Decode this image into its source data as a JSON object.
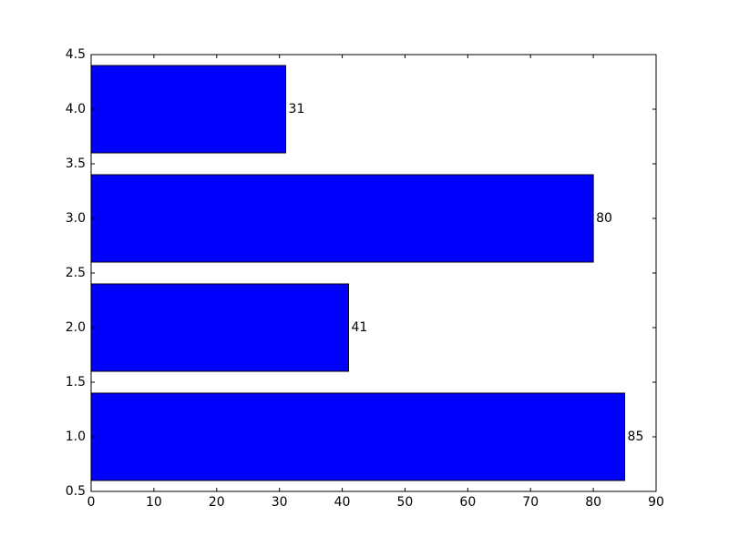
{
  "chart_data": {
    "type": "hbar",
    "y": [
      1,
      2,
      3,
      4
    ],
    "values": [
      85,
      41,
      80,
      31
    ],
    "color": "#0000ff",
    "xlim": [
      0,
      90
    ],
    "xticks": [
      0,
      10,
      20,
      30,
      40,
      50,
      60,
      70,
      80,
      90
    ],
    "ylim": [
      0.5,
      4.5
    ],
    "yticks": [
      0.5,
      {
        "value": 1,
        "label": "1.0"
      },
      1.5,
      {
        "value": 2,
        "label": "2.0"
      },
      2.5,
      {
        "value": 3,
        "label": "3.0"
      },
      3.5,
      {
        "value": 4,
        "label": "4.0"
      },
      4.5
    ],
    "grid": false
  }
}
